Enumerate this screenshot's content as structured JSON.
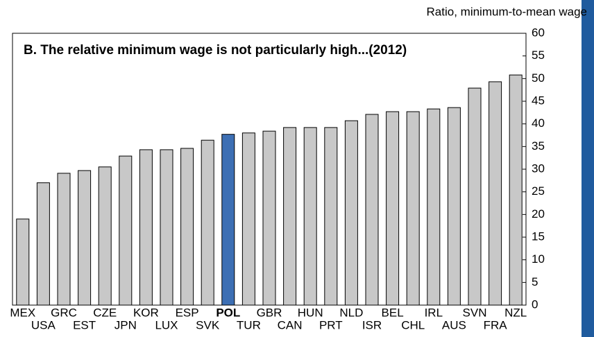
{
  "chart_data": {
    "type": "bar",
    "title": "B. The relative minimum wage is not particularly high...(2012)",
    "y_label": "Ratio, minimum-to-mean wage",
    "categories": [
      "MEX",
      "USA",
      "GRC",
      "EST",
      "CZE",
      "JPN",
      "KOR",
      "LUX",
      "ESP",
      "SVK",
      "POL",
      "TUR",
      "GBR",
      "CAN",
      "HUN",
      "PRT",
      "NLD",
      "ISR",
      "BEL",
      "CHL",
      "IRL",
      "AUS",
      "SVN",
      "FRA",
      "NZL"
    ],
    "values": [
      19.0,
      27.0,
      29.1,
      29.7,
      30.5,
      32.9,
      34.3,
      34.3,
      34.6,
      36.4,
      37.7,
      38.0,
      38.4,
      39.2,
      39.2,
      39.2,
      40.7,
      42.1,
      42.7,
      42.7,
      43.3,
      43.6,
      47.9,
      49.3,
      50.8
    ],
    "colors": [
      "#c8c8c8",
      "#c8c8c8",
      "#c8c8c8",
      "#c8c8c8",
      "#c8c8c8",
      "#c8c8c8",
      "#c8c8c8",
      "#c8c8c8",
      "#c8c8c8",
      "#c8c8c8",
      "#3d6fb4",
      "#c8c8c8",
      "#c8c8c8",
      "#c8c8c8",
      "#c8c8c8",
      "#c8c8c8",
      "#c8c8c8",
      "#c8c8c8",
      "#c8c8c8",
      "#c8c8c8",
      "#c8c8c8",
      "#c8c8c8",
      "#c8c8c8",
      "#c8c8c8",
      "#c8c8c8"
    ],
    "ylim": [
      0,
      60
    ],
    "yticks": [
      0,
      5,
      10,
      15,
      20,
      25,
      30,
      35,
      40,
      45,
      50,
      55,
      60
    ],
    "y_axis_side": "right",
    "grid": false
  }
}
